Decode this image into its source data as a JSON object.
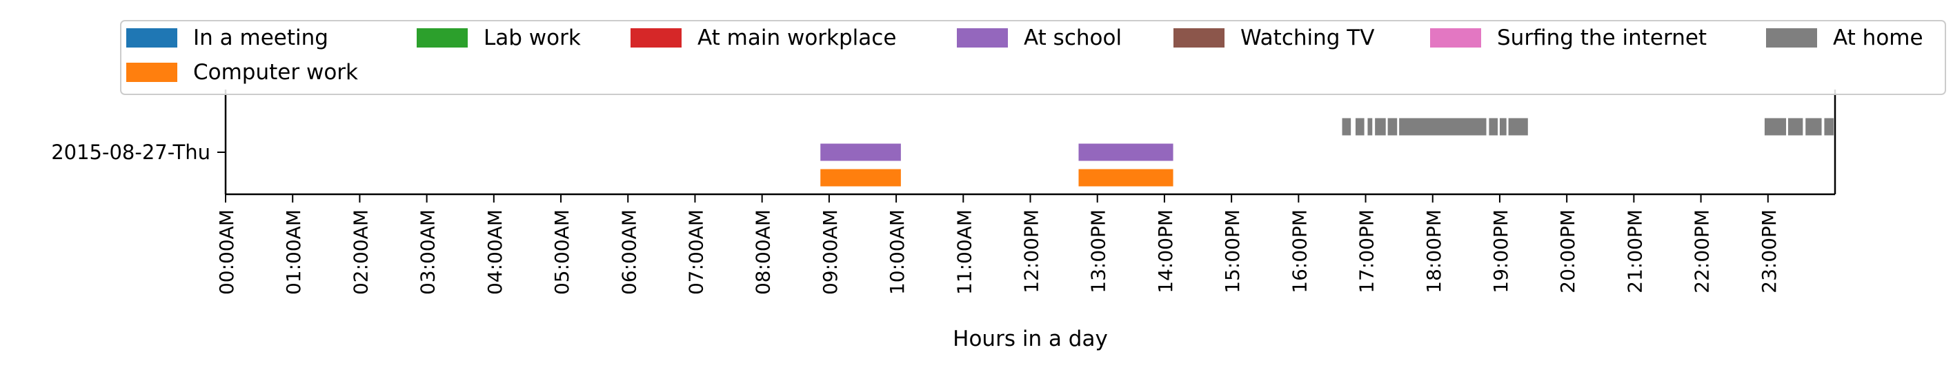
{
  "chart_data": {
    "type": "timeline",
    "xlabel": "Hours in a day",
    "ylabel": "",
    "y_categories": [
      "2015-08-27-Thu"
    ],
    "x_ticks": [
      "00:00AM",
      "01:00AM",
      "02:00AM",
      "03:00AM",
      "04:00AM",
      "05:00AM",
      "06:00AM",
      "07:00AM",
      "08:00AM",
      "09:00AM",
      "10:00AM",
      "11:00AM",
      "12:00PM",
      "13:00PM",
      "14:00PM",
      "15:00PM",
      "16:00PM",
      "17:00PM",
      "18:00PM",
      "19:00PM",
      "20:00PM",
      "21:00PM",
      "22:00PM",
      "23:00PM"
    ],
    "xlim_hours": [
      0,
      24
    ],
    "legend_position": "top",
    "legend": [
      {
        "label": "In a meeting",
        "color": "#1f77b4"
      },
      {
        "label": "Lab work",
        "color": "#2ca02c"
      },
      {
        "label": "At main workplace",
        "color": "#d62728"
      },
      {
        "label": "At school",
        "color": "#9467bd"
      },
      {
        "label": "Watching TV",
        "color": "#8c564b"
      },
      {
        "label": "Surfing the internet",
        "color": "#e377c2"
      },
      {
        "label": "At home",
        "color": "#7f7f7f"
      },
      {
        "label": "Computer work",
        "color": "#ff7f0e"
      }
    ],
    "series": [
      {
        "name": "Computer work",
        "color": "#ff7f0e",
        "lane": -1,
        "segments": [
          [
            8.87,
            10.07
          ],
          [
            12.72,
            14.13
          ]
        ]
      },
      {
        "name": "At school",
        "color": "#9467bd",
        "lane": 0,
        "segments": [
          [
            8.87,
            10.07
          ],
          [
            12.72,
            14.13
          ]
        ]
      },
      {
        "name": "At home",
        "color": "#7f7f7f",
        "lane": 1,
        "segments": [
          [
            16.65,
            16.78
          ],
          [
            16.85,
            16.98
          ],
          [
            17.03,
            17.1
          ],
          [
            17.14,
            17.3
          ],
          [
            17.33,
            17.47
          ],
          [
            17.5,
            18.8
          ],
          [
            18.84,
            18.97
          ],
          [
            19.0,
            19.1
          ],
          [
            19.13,
            19.42
          ],
          [
            22.95,
            23.27
          ],
          [
            23.3,
            23.52
          ],
          [
            23.56,
            23.8
          ],
          [
            23.84,
            23.98
          ]
        ]
      }
    ]
  }
}
